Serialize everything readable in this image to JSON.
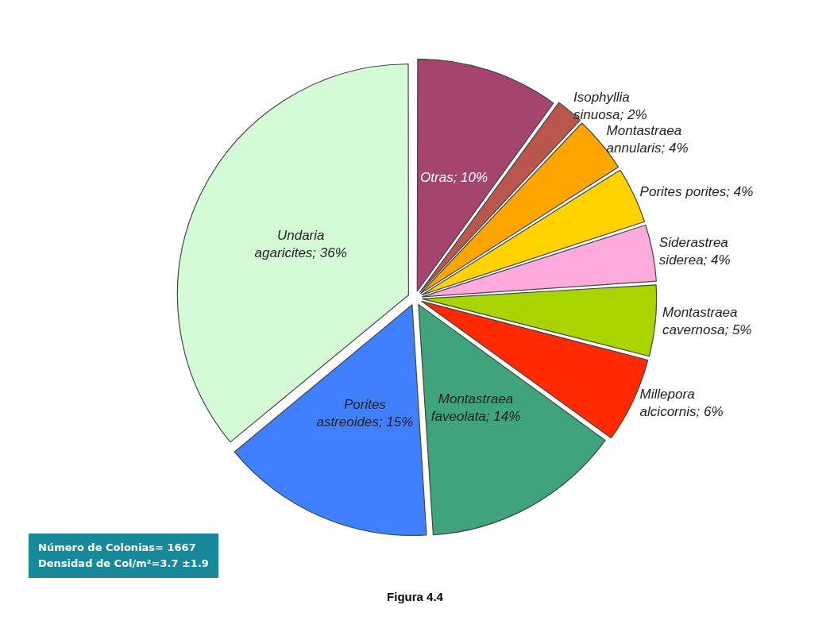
{
  "chart_data": {
    "type": "pie",
    "categories": [
      "Otras",
      "Isophyllia sinuosa",
      "Montastraea annularis",
      "Porites porites",
      "Siderastrea siderea",
      "Montastraea cavernosa",
      "Millepora alcicornis",
      "Montastraea faveolata",
      "Porites astreoides",
      "Undaria agaricites"
    ],
    "values": [
      10,
      2,
      4,
      4,
      4,
      5,
      6,
      14,
      15,
      36
    ],
    "value_labels": [
      "10%",
      "2%",
      "4%",
      "4%",
      "4%",
      "5%",
      "6%",
      "14%",
      "15%",
      "36%"
    ],
    "colors": [
      "#a5446f",
      "#b9574e",
      "#ffa500",
      "#ffd200",
      "#ffaadd",
      "#a8d400",
      "#ff2a00",
      "#3fa37c",
      "#4080ff",
      "#d4fbd6"
    ],
    "legend": false,
    "annotations": [
      "Número de Colonias= 1667",
      "Densidad de Col/m²=3.7 ±1.9",
      "Figura 4.4"
    ]
  }
}
